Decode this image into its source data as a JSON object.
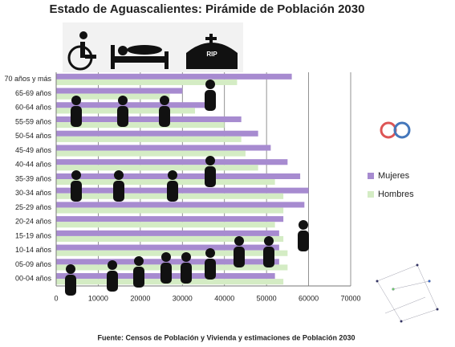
{
  "chart_data": {
    "type": "bar",
    "orientation": "horizontal",
    "title": "Estado de Aguascalientes: Pirámide de Población 2030",
    "source": "Fuente: Censos de Población y Vivienda y estimaciones de Población 2030",
    "categories": [
      "70 años y más",
      "65-69 años",
      "60-64 años",
      "55-59 años",
      "50-54 años",
      "45-49 años",
      "40-44 años",
      "35-39 años",
      "30-34 años",
      "25-29 años",
      "20-24 años",
      "15-19 años",
      "10-14 años",
      "05-09 años",
      "00-04 años"
    ],
    "series": [
      {
        "name": "Mujeres",
        "color": "#a78bd0",
        "values": [
          56000,
          30000,
          36000,
          44000,
          48000,
          51000,
          55000,
          58000,
          60000,
          59000,
          54000,
          53000,
          53000,
          53000,
          52000
        ]
      },
      {
        "name": "Hombres",
        "color": "#d4ecc4",
        "values": [
          43000,
          27000,
          33000,
          40000,
          44000,
          45000,
          48000,
          52000,
          54000,
          54000,
          52000,
          54000,
          55000,
          55000,
          54000
        ]
      }
    ],
    "xlim": [
      0,
      70000
    ],
    "xticks": [
      0,
      10000,
      20000,
      30000,
      40000,
      50000,
      60000,
      70000
    ],
    "grid": true,
    "legend": "right"
  }
}
